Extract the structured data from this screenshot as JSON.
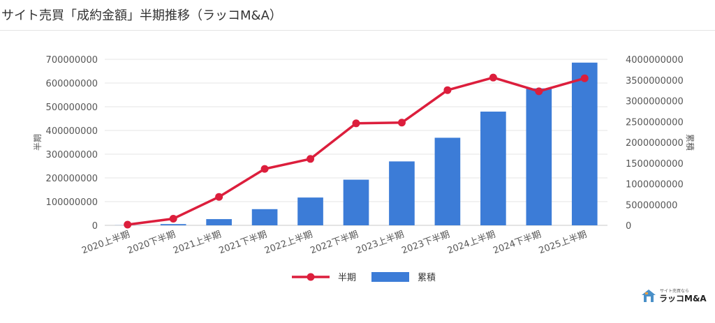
{
  "page": {
    "title": "サイト売買「成約金額」半期推移（ラッコM&A）"
  },
  "logo": {
    "tagline": "サイト売買なら",
    "name": "ラッコM&A"
  },
  "chart_data": {
    "type": "bar",
    "title": "",
    "categories": [
      "2020上半期",
      "2020下半期",
      "2021上半期",
      "2021下半期",
      "2022上半期",
      "2022下半期",
      "2023上半期",
      "2023下半期",
      "2024上半期",
      "2024下半期",
      "2025上半期"
    ],
    "series": [
      {
        "name": "累積",
        "type": "bar",
        "axis": "right",
        "color": "#3c7cd7",
        "values": [
          2500000,
          30000000,
          150000000,
          390000000,
          670000000,
          1100000000,
          1540000000,
          2110000000,
          2740000000,
          3300000000,
          3920000000
        ]
      },
      {
        "name": "半期",
        "type": "line",
        "axis": "left",
        "color": "#dc1e3c",
        "values": [
          3000000,
          28000000,
          120000000,
          238000000,
          280000000,
          430000000,
          433000000,
          570000000,
          623000000,
          565000000,
          620000000
        ]
      }
    ],
    "y_left": {
      "label": "半期",
      "min": 0,
      "max": 700000000,
      "step": 100000000
    },
    "y_right": {
      "label": "累積",
      "min": 0,
      "max": 4000000000,
      "step": 500000000
    },
    "grid": true,
    "legend": "bottom"
  }
}
